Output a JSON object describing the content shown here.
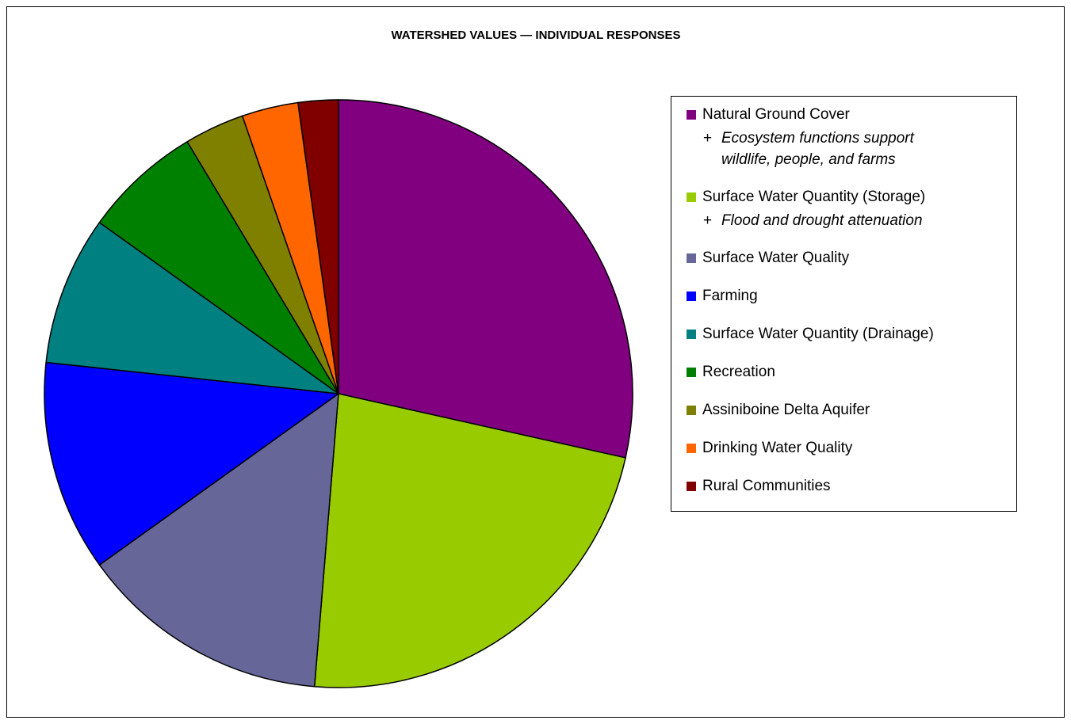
{
  "chart_data": {
    "type": "pie",
    "title": "WATERSHED VALUES — INDIVIDUAL RESPONSES",
    "categories": [
      "Natural Ground Cover",
      "Surface Water Quantity (Storage)",
      "Surface Water Quality",
      "Farming",
      "Surface Water Quantity (Drainage)",
      "Recreation",
      "Assiniboine Delta Aquifer",
      "Drinking Water Quality",
      "Rural Communities"
    ],
    "values": [
      28.5,
      22.8,
      13.8,
      11.6,
      8.2,
      6.5,
      3.3,
      3.1,
      2.2
    ],
    "colors": [
      "#800080",
      "#99cc00",
      "#666699",
      "#0000ff",
      "#008080",
      "#008000",
      "#808000",
      "#ff6600",
      "#800000"
    ],
    "note_marker": "+",
    "legend_notes": [
      [
        "Ecosystem functions support",
        "wildlife, people, and farms"
      ],
      [
        "Flood and drought attenuation"
      ],
      null,
      null,
      null,
      null,
      null,
      null,
      null
    ],
    "legend": "right"
  }
}
